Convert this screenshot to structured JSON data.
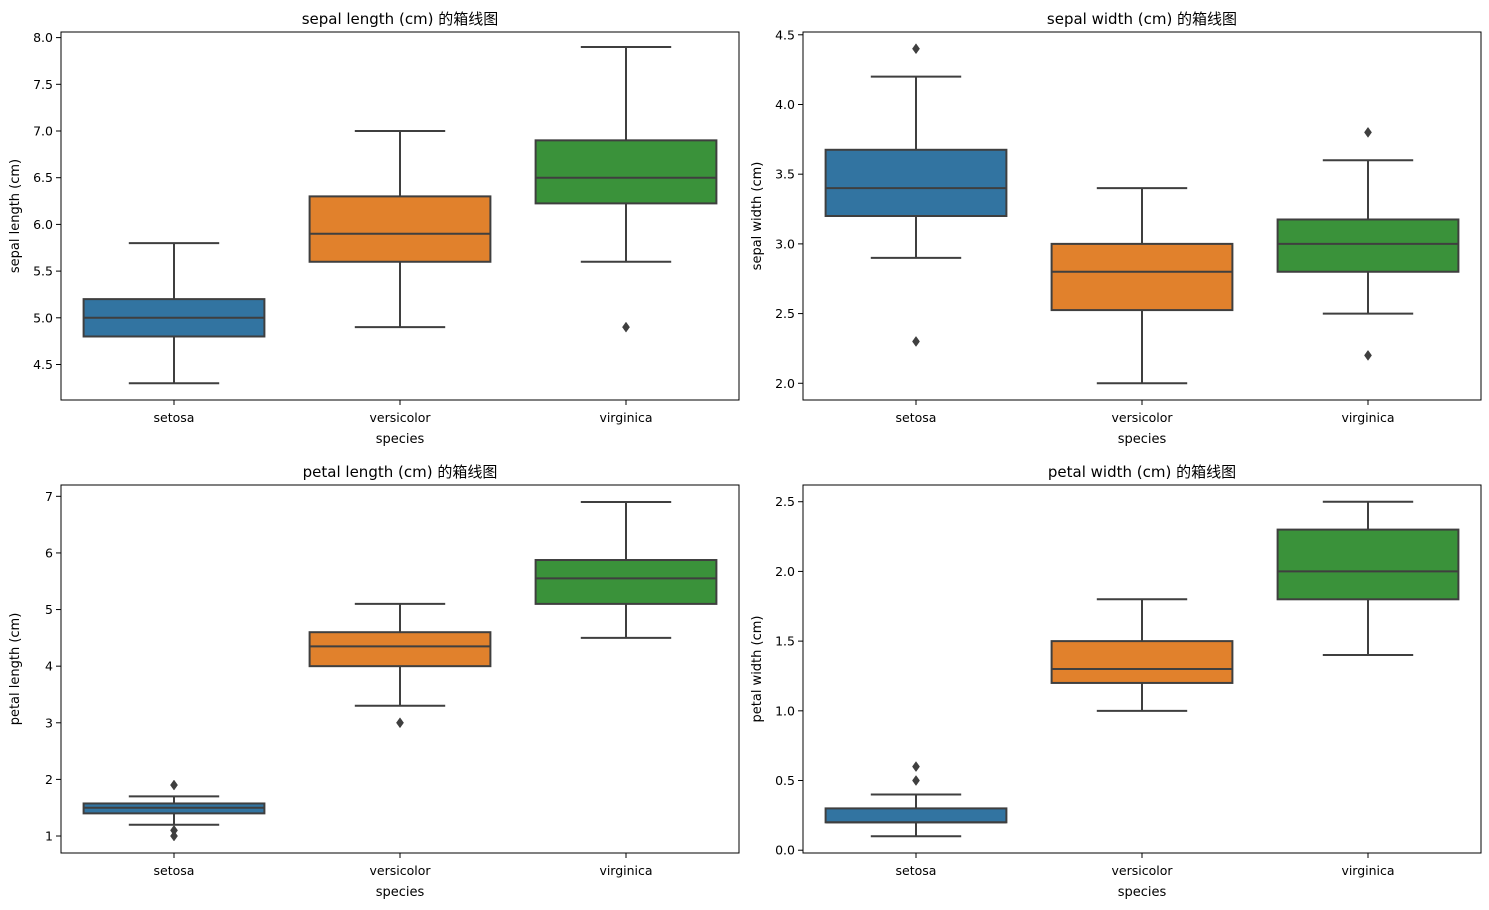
{
  "chart_data": [
    {
      "type": "box",
      "title": "sepal length (cm) 的箱线图",
      "xlabel": "species",
      "ylabel": "sepal length (cm)",
      "categories": [
        "setosa",
        "versicolor",
        "virginica"
      ],
      "colors": [
        "#3274a1",
        "#e1812c",
        "#3a923a"
      ],
      "ylim": [
        4.12,
        8.06
      ],
      "yticks": [
        4.5,
        5.0,
        5.5,
        6.0,
        6.5,
        7.0,
        7.5,
        8.0
      ],
      "ytick_labels": [
        "4.5",
        "5.0",
        "5.5",
        "6.0",
        "6.5",
        "7.0",
        "7.5",
        "8.0"
      ],
      "boxes": [
        {
          "whisker_low": 4.3,
          "q1": 4.8,
          "median": 5.0,
          "q3": 5.2,
          "whisker_high": 5.8,
          "outliers": []
        },
        {
          "whisker_low": 4.9,
          "q1": 5.6,
          "median": 5.9,
          "q3": 6.3,
          "whisker_high": 7.0,
          "outliers": []
        },
        {
          "whisker_low": 5.6,
          "q1": 6.225,
          "median": 6.5,
          "q3": 6.9,
          "whisker_high": 7.9,
          "outliers": [
            4.9
          ]
        }
      ]
    },
    {
      "type": "box",
      "title": "sepal width (cm) 的箱线图",
      "xlabel": "species",
      "ylabel": "sepal width (cm)",
      "categories": [
        "setosa",
        "versicolor",
        "virginica"
      ],
      "colors": [
        "#3274a1",
        "#e1812c",
        "#3a923a"
      ],
      "ylim": [
        1.88,
        4.52
      ],
      "yticks": [
        2.0,
        2.5,
        3.0,
        3.5,
        4.0,
        4.5
      ],
      "ytick_labels": [
        "2.0",
        "2.5",
        "3.0",
        "3.5",
        "4.0",
        "4.5"
      ],
      "boxes": [
        {
          "whisker_low": 2.9,
          "q1": 3.2,
          "median": 3.4,
          "q3": 3.675,
          "whisker_high": 4.2,
          "outliers": [
            4.4,
            2.3
          ]
        },
        {
          "whisker_low": 2.0,
          "q1": 2.525,
          "median": 2.8,
          "q3": 3.0,
          "whisker_high": 3.4,
          "outliers": []
        },
        {
          "whisker_low": 2.5,
          "q1": 2.8,
          "median": 3.0,
          "q3": 3.175,
          "whisker_high": 3.6,
          "outliers": [
            3.8,
            2.2
          ]
        }
      ]
    },
    {
      "type": "box",
      "title": "petal length (cm) 的箱线图",
      "xlabel": "species",
      "ylabel": "petal length (cm)",
      "categories": [
        "setosa",
        "versicolor",
        "virginica"
      ],
      "colors": [
        "#3274a1",
        "#e1812c",
        "#3a923a"
      ],
      "ylim": [
        0.7,
        7.2
      ],
      "yticks": [
        1,
        2,
        3,
        4,
        5,
        6,
        7
      ],
      "ytick_labels": [
        "1",
        "2",
        "3",
        "4",
        "5",
        "6",
        "7"
      ],
      "boxes": [
        {
          "whisker_low": 1.2,
          "q1": 1.4,
          "median": 1.5,
          "q3": 1.575,
          "whisker_high": 1.7,
          "outliers": [
            1.9,
            1.1,
            1.0
          ]
        },
        {
          "whisker_low": 3.3,
          "q1": 4.0,
          "median": 4.35,
          "q3": 4.6,
          "whisker_high": 5.1,
          "outliers": [
            3.0
          ]
        },
        {
          "whisker_low": 4.5,
          "q1": 5.1,
          "median": 5.55,
          "q3": 5.875,
          "whisker_high": 6.9,
          "outliers": []
        }
      ]
    },
    {
      "type": "box",
      "title": "petal width (cm) 的箱线图",
      "xlabel": "species",
      "ylabel": "petal width (cm)",
      "categories": [
        "setosa",
        "versicolor",
        "virginica"
      ],
      "colors": [
        "#3274a1",
        "#e1812c",
        "#3a923a"
      ],
      "ylim": [
        -0.02,
        2.62
      ],
      "yticks": [
        0.0,
        0.5,
        1.0,
        1.5,
        2.0,
        2.5
      ],
      "ytick_labels": [
        "0.0",
        "0.5",
        "1.0",
        "1.5",
        "2.0",
        "2.5"
      ],
      "boxes": [
        {
          "whisker_low": 0.1,
          "q1": 0.2,
          "median": 0.2,
          "q3": 0.3,
          "whisker_high": 0.4,
          "outliers": [
            0.6,
            0.5
          ]
        },
        {
          "whisker_low": 1.0,
          "q1": 1.2,
          "median": 1.3,
          "q3": 1.5,
          "whisker_high": 1.8,
          "outliers": []
        },
        {
          "whisker_low": 1.4,
          "q1": 1.8,
          "median": 2.0,
          "q3": 2.3,
          "whisker_high": 2.5,
          "outliers": []
        }
      ]
    }
  ]
}
